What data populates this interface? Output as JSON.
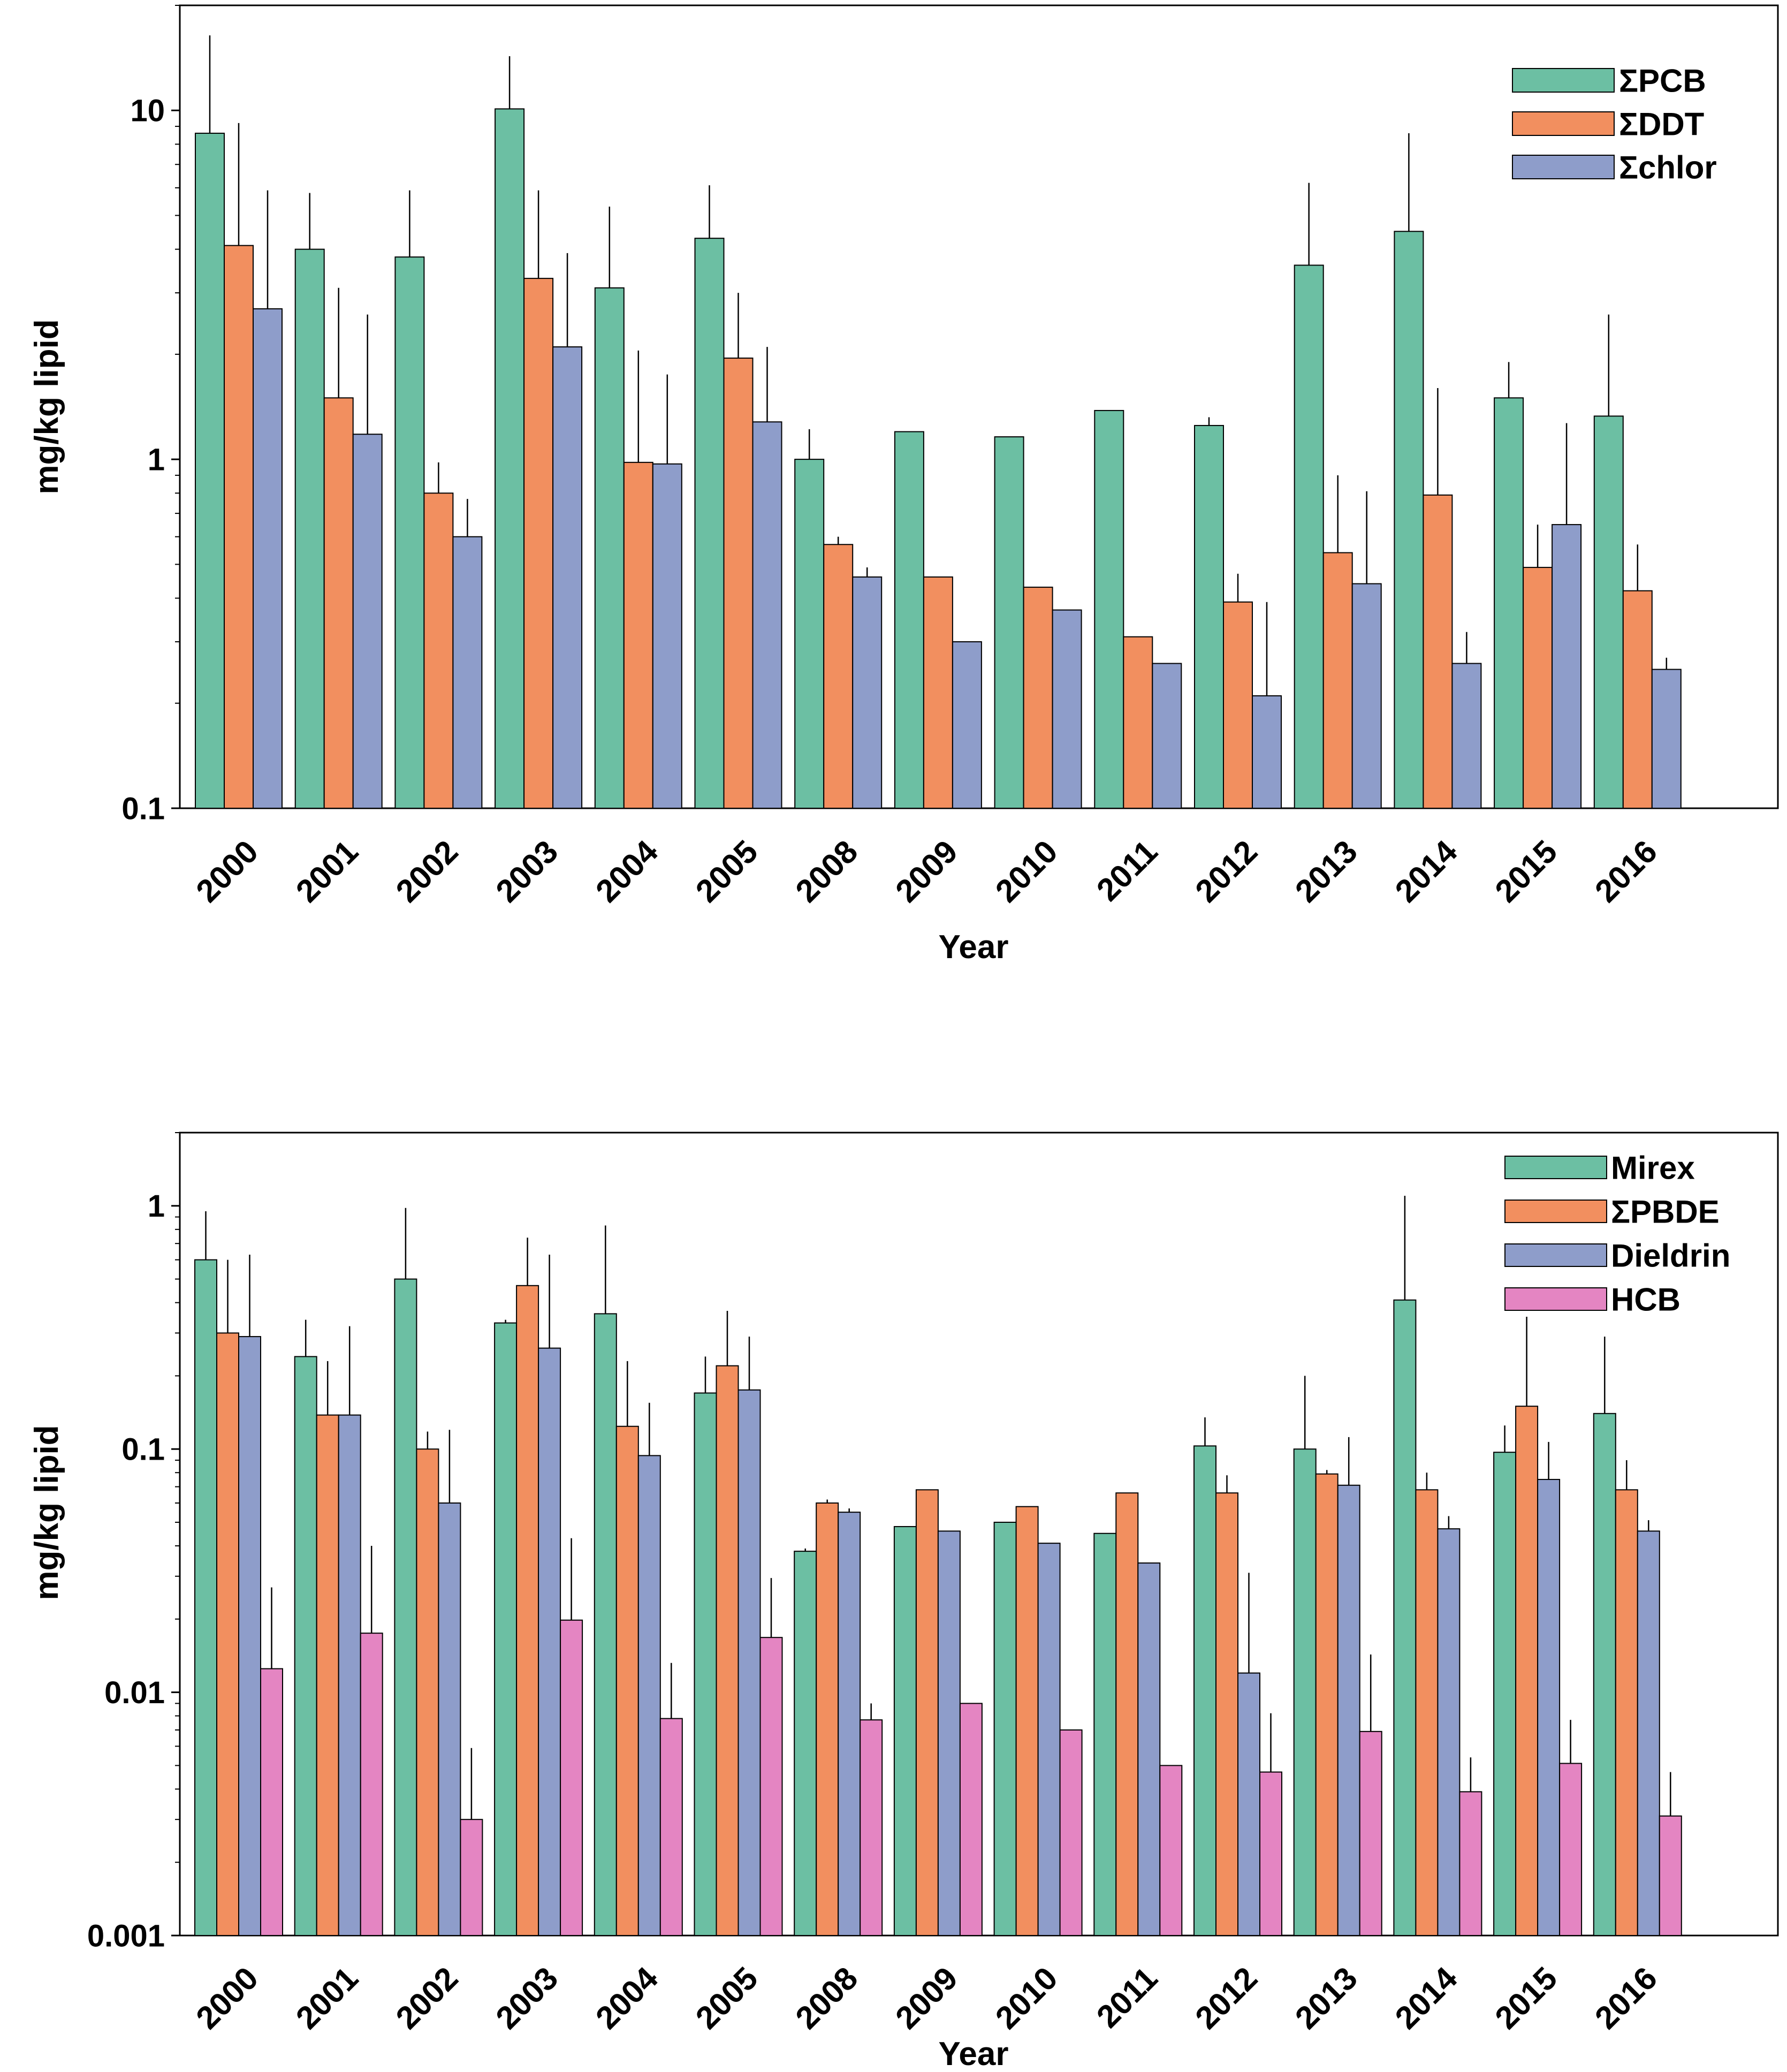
{
  "chart_data": [
    {
      "type": "bar",
      "yscale": "log",
      "ylim": [
        0.1,
        20
      ],
      "yticks": [
        0.1,
        1,
        10
      ],
      "ytick_labels": [
        "0.1",
        "1",
        "10"
      ],
      "xlabel": "Year",
      "ylabel": "mg/kg lipid",
      "legend_position": "top-right",
      "categories": [
        "2000",
        "2001",
        "2002",
        "2003",
        "2004",
        "2005",
        "2008",
        "2009",
        "2010",
        "2011",
        "2012",
        "2013",
        "2014",
        "2015",
        "2016"
      ],
      "series": [
        {
          "name": "ΣPCB",
          "color": "#6cbfa3",
          "values": [
            8.6,
            4.0,
            3.8,
            10.1,
            3.1,
            4.3,
            1.0,
            1.2,
            1.16,
            1.38,
            1.25,
            3.6,
            4.5,
            1.5,
            1.33
          ],
          "error_upper": [
            16.4,
            5.8,
            5.9,
            14.3,
            5.3,
            6.1,
            1.22,
            null,
            null,
            null,
            1.32,
            6.2,
            8.6,
            1.9,
            2.6
          ]
        },
        {
          "name": "ΣDDT",
          "color": "#f28f5f",
          "values": [
            4.1,
            1.5,
            0.8,
            3.3,
            0.98,
            1.95,
            0.57,
            0.46,
            0.43,
            0.31,
            0.39,
            0.54,
            0.79,
            0.49,
            0.42
          ],
          "error_upper": [
            9.2,
            3.1,
            0.98,
            5.9,
            2.05,
            3.0,
            0.6,
            null,
            null,
            null,
            0.47,
            0.9,
            1.6,
            0.65,
            0.57
          ]
        },
        {
          "name": "Σchlor",
          "color": "#8e9dca",
          "values": [
            2.7,
            1.18,
            0.6,
            2.1,
            0.97,
            1.28,
            0.46,
            0.3,
            0.37,
            0.26,
            0.21,
            0.44,
            0.26,
            0.65,
            0.25
          ],
          "error_upper": [
            5.9,
            2.6,
            0.77,
            3.9,
            1.75,
            2.1,
            0.49,
            null,
            null,
            null,
            0.39,
            0.81,
            0.32,
            1.27,
            0.27
          ]
        }
      ]
    },
    {
      "type": "bar",
      "yscale": "log",
      "ylim": [
        0.001,
        2
      ],
      "yticks": [
        0.001,
        0.01,
        0.1,
        1
      ],
      "ytick_labels": [
        "0.001",
        "0.01",
        "0.1",
        "1"
      ],
      "xlabel": "Year",
      "ylabel": "mg/kg lipid",
      "legend_position": "top-right",
      "categories": [
        "2000",
        "2001",
        "2002",
        "2003",
        "2004",
        "2005",
        "2008",
        "2009",
        "2010",
        "2011",
        "2012",
        "2013",
        "2014",
        "2015",
        "2016"
      ],
      "series": [
        {
          "name": "Mirex",
          "color": "#6cbfa3",
          "values": [
            0.6,
            0.24,
            0.5,
            0.33,
            0.36,
            0.17,
            0.038,
            0.048,
            0.05,
            0.045,
            0.103,
            0.1,
            0.41,
            0.097,
            0.14
          ],
          "error_upper": [
            0.95,
            0.34,
            0.98,
            0.34,
            0.83,
            0.24,
            0.039,
            null,
            null,
            null,
            0.135,
            0.2,
            1.1,
            0.125,
            0.29
          ]
        },
        {
          "name": "ΣPBDE",
          "color": "#f28f5f",
          "values": [
            0.3,
            0.138,
            0.1,
            0.47,
            0.124,
            0.22,
            0.06,
            0.068,
            0.058,
            0.066,
            0.066,
            0.079,
            0.068,
            0.15,
            0.068
          ],
          "error_upper": [
            0.6,
            0.23,
            0.118,
            0.74,
            0.23,
            0.37,
            0.062,
            null,
            null,
            null,
            0.078,
            0.082,
            0.08,
            0.35,
            0.09
          ]
        },
        {
          "name": "Dieldrin",
          "color": "#8e9dca",
          "values": [
            0.29,
            0.138,
            0.06,
            0.26,
            0.094,
            0.175,
            0.055,
            0.046,
            0.041,
            0.034,
            0.012,
            0.071,
            0.047,
            0.075,
            0.046
          ],
          "error_upper": [
            0.63,
            0.32,
            0.12,
            0.63,
            0.155,
            0.29,
            0.057,
            null,
            null,
            null,
            0.031,
            0.112,
            0.053,
            0.107,
            0.051
          ]
        },
        {
          "name": "HCB",
          "color": "#e485c2",
          "values": [
            0.0125,
            0.0175,
            0.003,
            0.0198,
            0.0078,
            0.0168,
            0.0077,
            0.009,
            0.007,
            0.005,
            0.0047,
            0.0069,
            0.0039,
            0.0051,
            0.0031
          ],
          "error_upper": [
            0.027,
            0.04,
            0.0059,
            0.043,
            0.0132,
            0.0295,
            0.009,
            null,
            null,
            null,
            0.0082,
            0.0143,
            0.0054,
            0.0077,
            0.0047
          ]
        }
      ]
    }
  ]
}
